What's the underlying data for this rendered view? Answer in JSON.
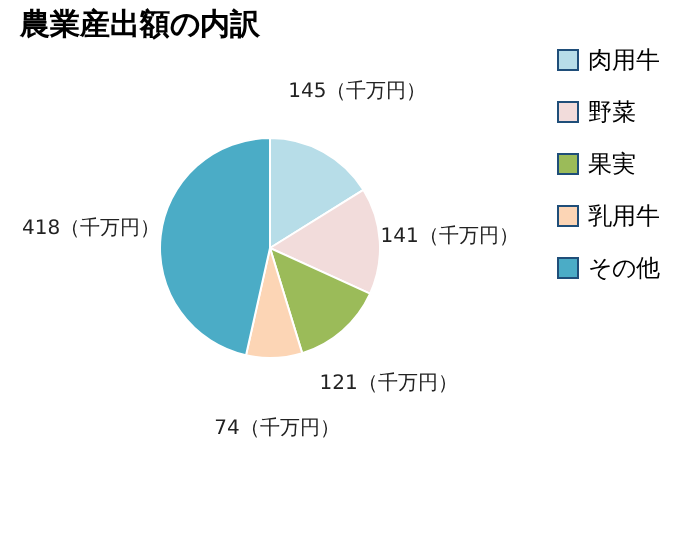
{
  "chart_data": {
    "type": "pie",
    "title": "農業産出額の内訳",
    "categories": [
      "肉用牛",
      "野菜",
      "果実",
      "乳用牛",
      "その他"
    ],
    "values": [
      145,
      141,
      121,
      74,
      418
    ],
    "colors": [
      "#b7dde8",
      "#f2dcdb",
      "#9bbb59",
      "#fcd5b5",
      "#4bacc6"
    ],
    "value_labels": [
      "145（千万円）",
      "141（千万円）",
      "121（千万円）",
      "74（千万円）",
      "418（千万円）"
    ],
    "legend": "right"
  }
}
